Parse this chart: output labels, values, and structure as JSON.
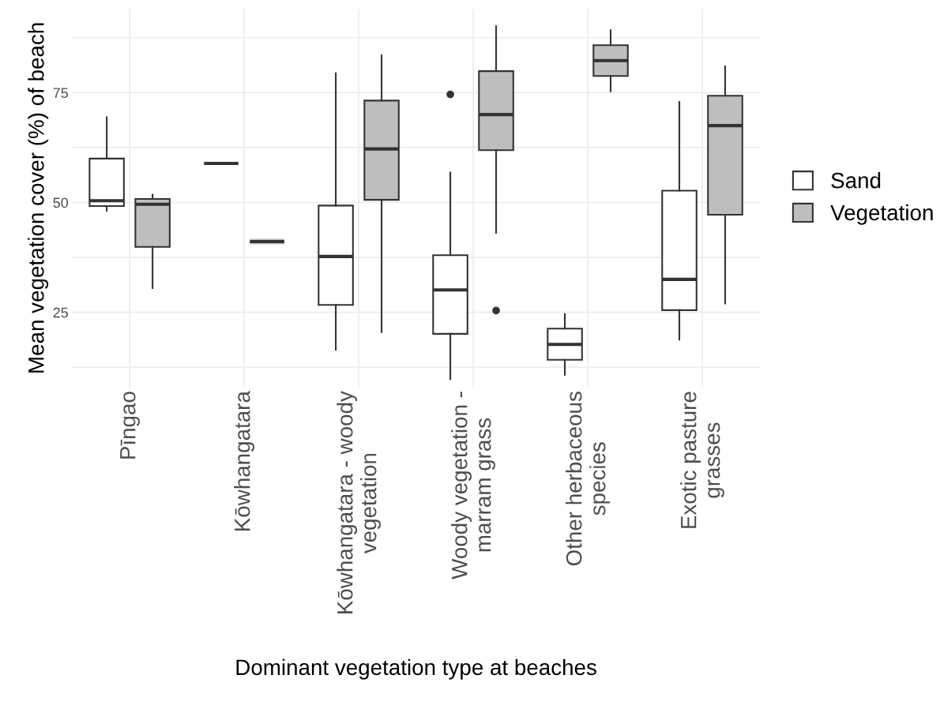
{
  "chart_data": {
    "type": "box",
    "xlabel": "Dominant vegetation type at beaches",
    "ylabel": "Mean vegetation cover (%) of beach",
    "categories": [
      "Pīngao",
      "Kōwhangatara",
      "Kōwhangatara - woody\nvegetation",
      "Woody vegetation -\nmarram grass",
      "Other herbaceous\nspecies",
      "Exotic pasture\ngrasses"
    ],
    "ylim": [
      8,
      94
    ],
    "yticks": [
      {
        "value": 12.5,
        "label": null
      },
      25,
      {
        "value": 37.5,
        "label": null
      },
      50,
      {
        "value": 62.5,
        "label": null
      },
      75,
      {
        "value": 87.5,
        "label": null
      }
    ],
    "grid": true,
    "legend": "right",
    "series": [
      {
        "name": "Sand",
        "color": "#ffffff",
        "boxes": [
          {
            "low": 48.1,
            "q1": 49.2,
            "median": 50.4,
            "q3": 60.0,
            "high": 69.4
          },
          {
            "low": 58.9,
            "q1": 58.9,
            "median": 58.9,
            "q3": 58.9,
            "high": 58.9
          },
          {
            "low": 16.5,
            "q1": 26.7,
            "median": 37.7,
            "q3": 49.3,
            "high": 79.4
          },
          {
            "low": 9.8,
            "q1": 20.1,
            "median": 30.1,
            "q3": 38.0,
            "high": 56.8,
            "outliers": [
              74.6
            ]
          },
          {
            "low": 10.8,
            "q1": 14.2,
            "median": 17.7,
            "q3": 21.3,
            "high": 24.6
          },
          {
            "low": 18.8,
            "q1": 25.5,
            "median": 32.5,
            "q3": 52.7,
            "high": 72.9
          }
        ]
      },
      {
        "name": "Vegetation",
        "color": "#bebebe",
        "boxes": [
          {
            "low": 30.5,
            "q1": 39.9,
            "median": 49.6,
            "q3": 50.8,
            "high": 51.8
          },
          {
            "low": 41.1,
            "q1": 41.1,
            "median": 41.1,
            "q3": 41.1,
            "high": 41.1
          },
          {
            "low": 20.5,
            "q1": 50.6,
            "median": 62.2,
            "q3": 73.2,
            "high": 83.5
          },
          {
            "low": 43.1,
            "q1": 61.9,
            "median": 70.0,
            "q3": 79.9,
            "high": 90.1,
            "outliers": [
              25.4
            ]
          },
          {
            "low": 75.3,
            "q1": 78.8,
            "median": 82.3,
            "q3": 85.8,
            "high": 89.2
          },
          {
            "low": 27.0,
            "q1": 47.2,
            "median": 67.5,
            "q3": 74.3,
            "high": 81.0
          }
        ]
      }
    ]
  }
}
